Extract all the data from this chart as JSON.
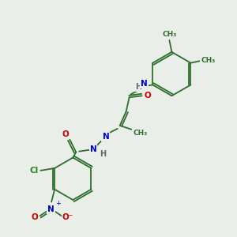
{
  "bg_color": "#eaeee8",
  "bond_color": "#2d6e2d",
  "atom_colors": {
    "N": "#0000cc",
    "O": "#cc0000",
    "Cl": "#228822",
    "H": "#666666",
    "C": "#2d6e2d"
  },
  "lw": 1.3,
  "figsize": [
    3.0,
    3.0
  ],
  "dpi": 100,
  "xlim": [
    0,
    300
  ],
  "ylim": [
    0,
    300
  ]
}
